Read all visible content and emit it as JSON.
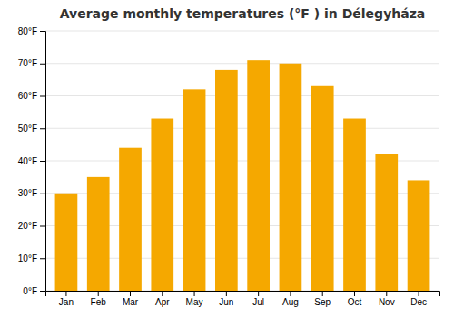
{
  "chart_data": {
    "type": "bar",
    "title": "Average monthly temperatures (°F ) in Délegyháza",
    "categories": [
      "Jan",
      "Feb",
      "Mar",
      "Apr",
      "May",
      "Jun",
      "Jul",
      "Aug",
      "Sep",
      "Oct",
      "Nov",
      "Dec"
    ],
    "values": [
      30,
      35,
      44,
      53,
      62,
      68,
      71,
      70,
      63,
      53,
      42,
      34
    ],
    "color": "#F5A800",
    "ylim": [
      0,
      80
    ],
    "yticks": [
      {
        "value": 0,
        "label": "0°F"
      },
      {
        "value": 10,
        "label": "10°F"
      },
      {
        "value": 20,
        "label": "20°F"
      },
      {
        "value": 30,
        "label": "30°F"
      },
      {
        "value": 40,
        "label": "40°F"
      },
      {
        "value": 50,
        "label": "50°F"
      },
      {
        "value": 60,
        "label": "60°F"
      },
      {
        "value": 70,
        "label": "70°F"
      },
      {
        "value": 80,
        "label": "80°F"
      }
    ],
    "grid": true
  }
}
